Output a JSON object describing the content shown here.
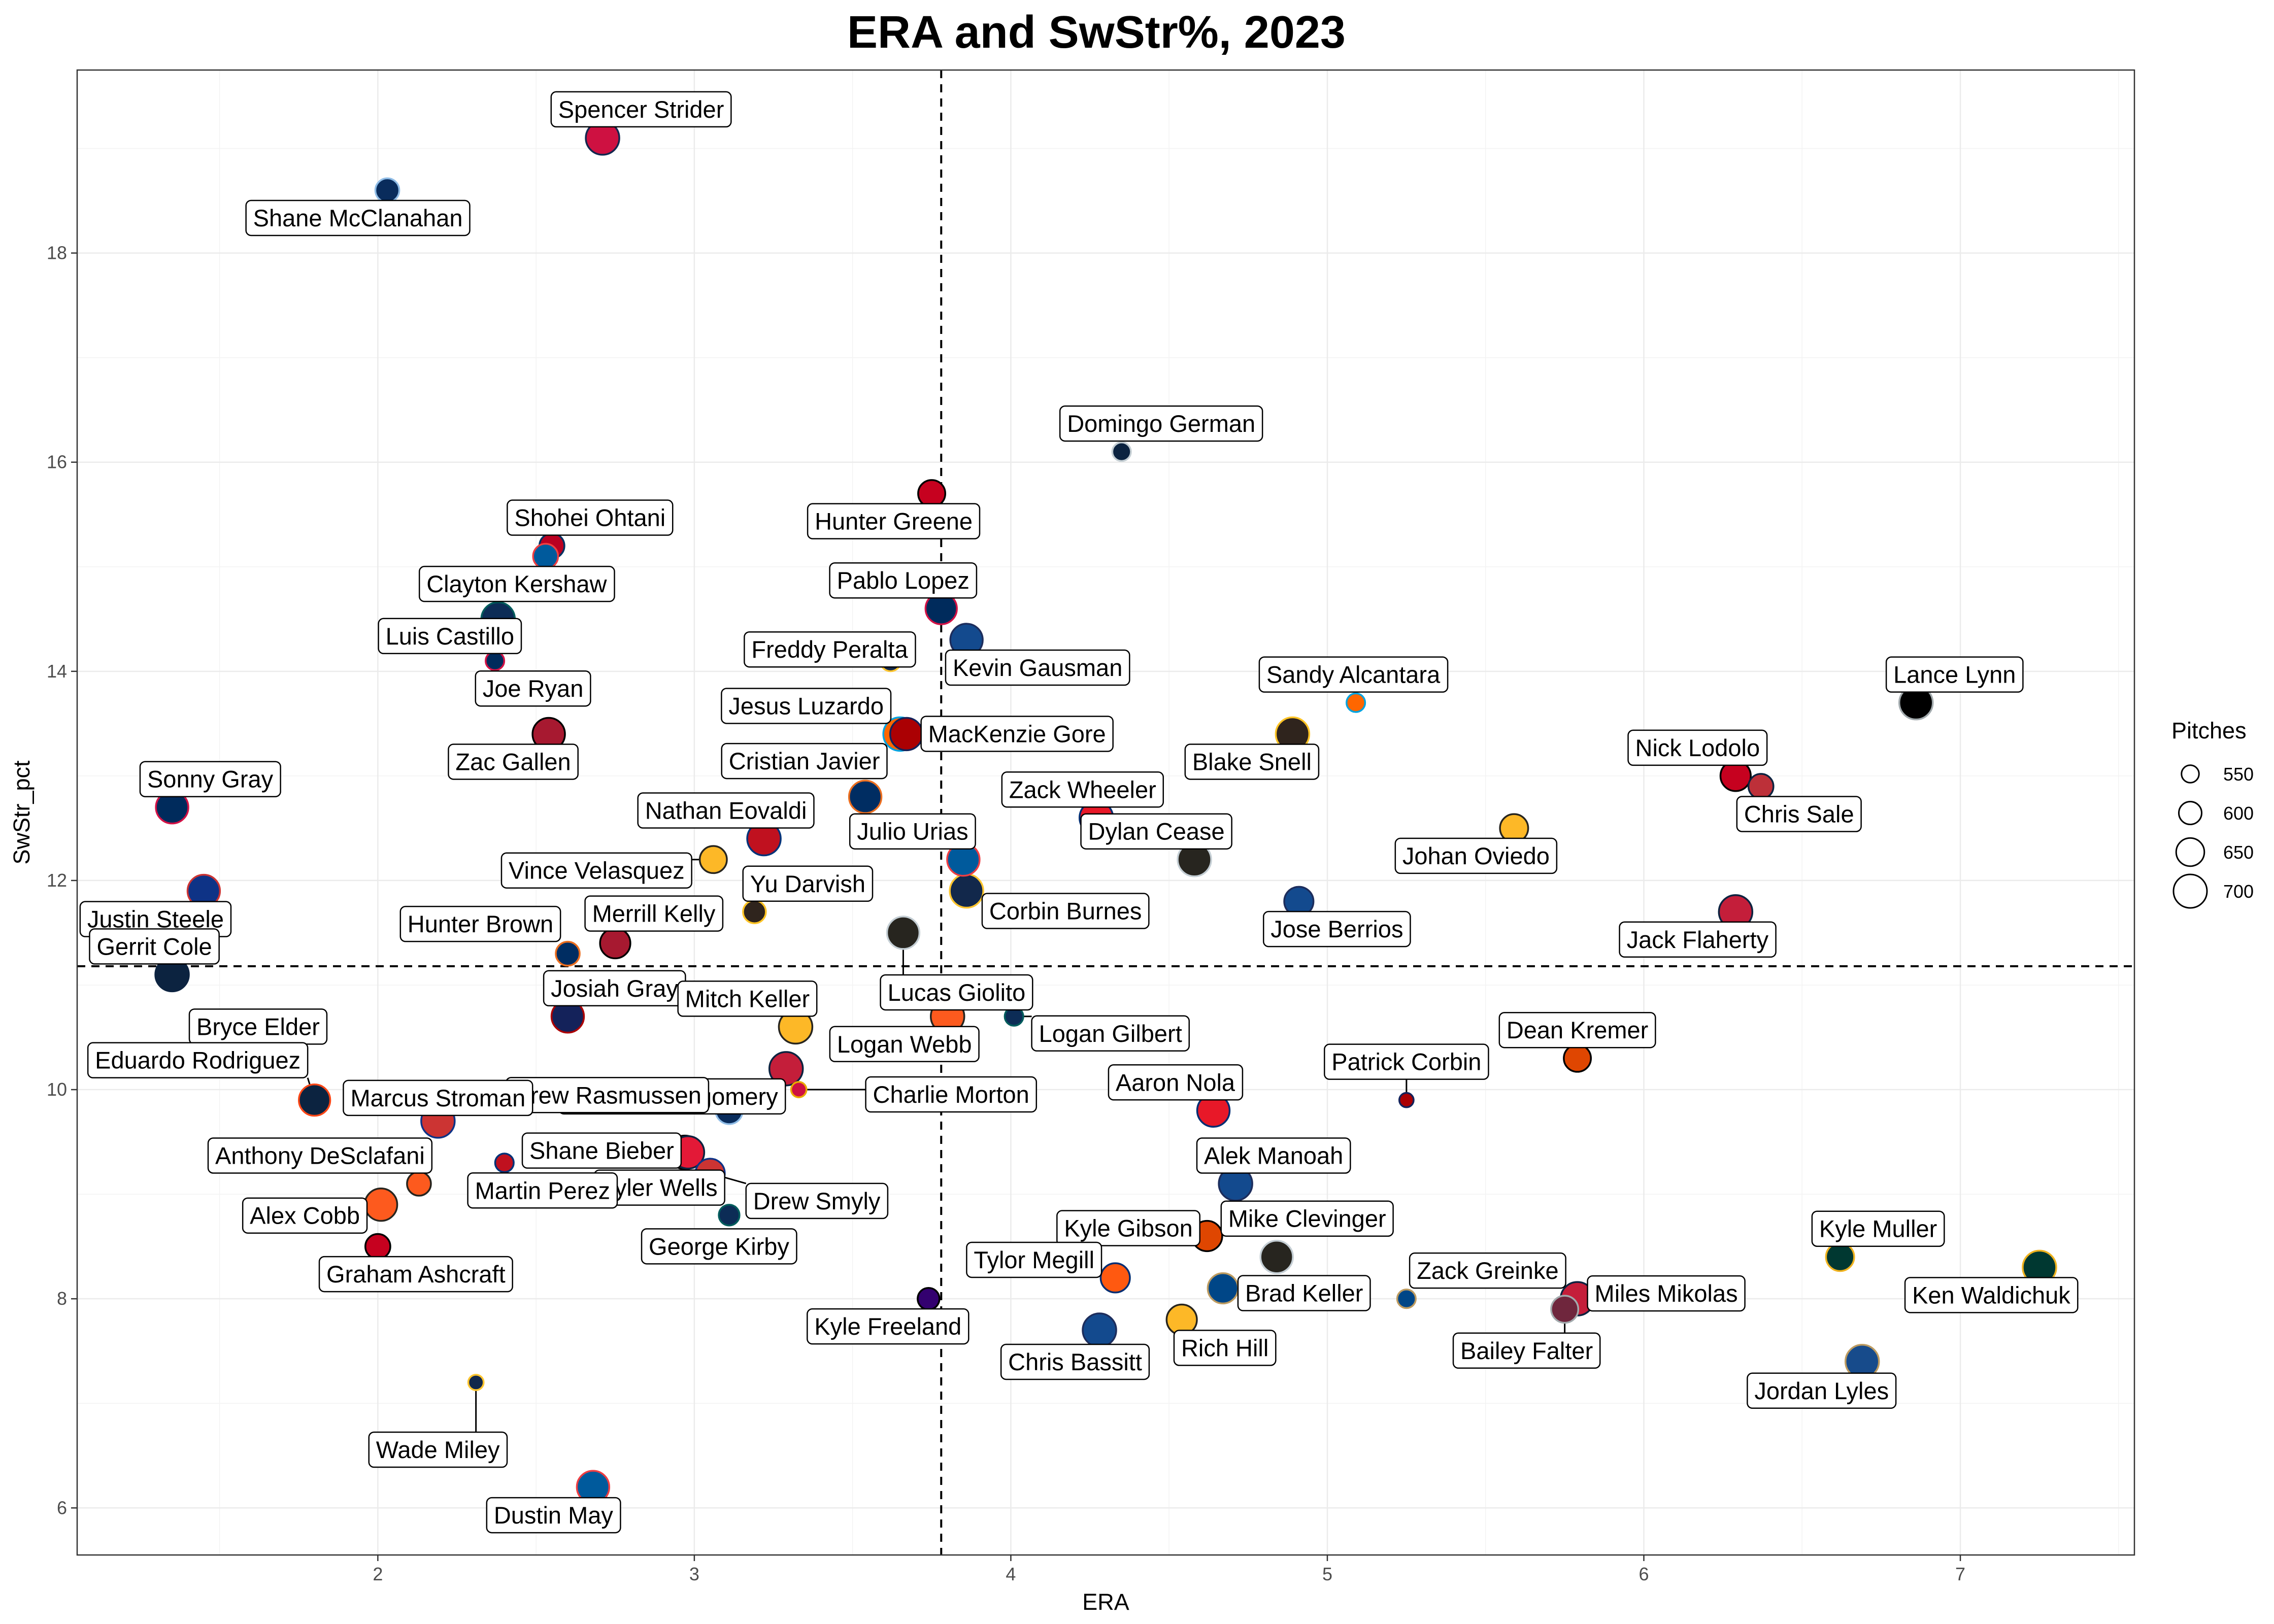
{
  "chart_data": {
    "type": "scatter",
    "title": "ERA and SwStr%, 2023",
    "xlabel": "ERA",
    "ylabel": "SwStr_pct",
    "xlim": [
      1.05,
      7.55
    ],
    "ylim": [
      5.55,
      19.75
    ],
    "x_ticks": [
      2,
      3,
      4,
      5,
      6,
      7
    ],
    "y_ticks": [
      6,
      8,
      10,
      12,
      14,
      16,
      18
    ],
    "grid": true,
    "reference_lines": {
      "x": 3.78,
      "y": 11.18
    },
    "legend": {
      "title": "Pitches",
      "placement": "right",
      "size_values": [
        550,
        600,
        650,
        700
      ]
    },
    "points": [
      {
        "name": "Spencer Strider",
        "x": 2.71,
        "y": 19.1,
        "pitches": 700,
        "fill": "#ce1141",
        "stroke": "#13274f"
      },
      {
        "name": "Shane McClanahan",
        "x": 2.03,
        "y": 18.6,
        "pitches": 610,
        "fill": "#092c5c",
        "stroke": "#8fbce6"
      },
      {
        "name": "Domingo German",
        "x": 4.35,
        "y": 16.1,
        "pitches": 560,
        "fill": "#0c2340",
        "stroke": "#c4ced3"
      },
      {
        "name": "Hunter Greene",
        "x": 3.75,
        "y": 15.7,
        "pitches": 640,
        "fill": "#c6011f",
        "stroke": "#000000"
      },
      {
        "name": "Shohei Ohtani",
        "x": 2.55,
        "y": 15.2,
        "pitches": 620,
        "fill": "#ba0021",
        "stroke": "#003263"
      },
      {
        "name": "Clayton Kershaw",
        "x": 2.53,
        "y": 15.1,
        "pitches": 620,
        "fill": "#005a9c",
        "stroke": "#ef3e42"
      },
      {
        "name": "Pablo Lopez",
        "x": 3.78,
        "y": 14.6,
        "pitches": 680,
        "fill": "#002b5c",
        "stroke": "#d31145"
      },
      {
        "name": "Luis Castillo",
        "x": 2.38,
        "y": 14.5,
        "pitches": 700,
        "fill": "#0c2c56",
        "stroke": "#005c5c"
      },
      {
        "name": "Kevin Gausman",
        "x": 3.86,
        "y": 14.3,
        "pitches": 690,
        "fill": "#134a8e",
        "stroke": "#1d2d5c"
      },
      {
        "name": "Joe Ryan",
        "x": 2.37,
        "y": 14.1,
        "pitches": 560,
        "fill": "#002b5c",
        "stroke": "#d31145"
      },
      {
        "name": "Freddy Peralta",
        "x": 3.62,
        "y": 14.1,
        "pitches": 580,
        "fill": "#12284b",
        "stroke": "#ffc52f"
      },
      {
        "name": "Sandy Alcantara",
        "x": 5.09,
        "y": 13.7,
        "pitches": 560,
        "fill": "#ff6600",
        "stroke": "#00a3e0"
      },
      {
        "name": "Lance Lynn",
        "x": 6.86,
        "y": 13.7,
        "pitches": 700,
        "fill": "#000000",
        "stroke": "#a2aaad"
      },
      {
        "name": "Zac Gallen",
        "x": 2.54,
        "y": 13.4,
        "pitches": 690,
        "fill": "#a71930",
        "stroke": "#000000"
      },
      {
        "name": "Jesus Luzardo",
        "x": 3.65,
        "y": 13.4,
        "pitches": 700,
        "fill": "#ff6600",
        "stroke": "#00a3e0"
      },
      {
        "name": "MacKenzie Gore",
        "x": 3.67,
        "y": 13.4,
        "pitches": 690,
        "fill": "#ab0003",
        "stroke": "#14225a"
      },
      {
        "name": "Blake Snell",
        "x": 4.89,
        "y": 13.4,
        "pitches": 700,
        "fill": "#2f241d",
        "stroke": "#ffc425"
      },
      {
        "name": "Nick Lodolo",
        "x": 6.29,
        "y": 13.0,
        "pitches": 670,
        "fill": "#c6011f",
        "stroke": "#000000"
      },
      {
        "name": "Chris Sale",
        "x": 6.37,
        "y": 12.9,
        "pitches": 620,
        "fill": "#bd3039",
        "stroke": "#0c2340"
      },
      {
        "name": "Cristian Javier",
        "x": 3.54,
        "y": 12.8,
        "pitches": 690,
        "fill": "#002d62",
        "stroke": "#eb6e1f"
      },
      {
        "name": "Sonny Gray",
        "x": 1.35,
        "y": 12.7,
        "pitches": 690,
        "fill": "#002b5c",
        "stroke": "#d31145"
      },
      {
        "name": "Zack Wheeler",
        "x": 4.27,
        "y": 12.6,
        "pitches": 700,
        "fill": "#e81828",
        "stroke": "#002d72"
      },
      {
        "name": "Johan Oviedo",
        "x": 5.59,
        "y": 12.5,
        "pitches": 650,
        "fill": "#fdb827",
        "stroke": "#27251f"
      },
      {
        "name": "Nathan Eovaldi",
        "x": 3.22,
        "y": 12.4,
        "pitches": 700,
        "fill": "#c0111f",
        "stroke": "#003278"
      },
      {
        "name": "Dylan Cease",
        "x": 4.58,
        "y": 12.2,
        "pitches": 700,
        "fill": "#27251f",
        "stroke": "#c4ced4"
      },
      {
        "name": "Vince Velasquez",
        "x": 3.06,
        "y": 12.2,
        "pitches": 640,
        "fill": "#fdb827",
        "stroke": "#27251f"
      },
      {
        "name": "Julio Urias",
        "x": 3.85,
        "y": 12.2,
        "pitches": 690,
        "fill": "#005a9c",
        "stroke": "#ef3e42"
      },
      {
        "name": "Justin Steele",
        "x": 1.45,
        "y": 11.9,
        "pitches": 690,
        "fill": "#0e3386",
        "stroke": "#cc3433"
      },
      {
        "name": "Corbin Burnes",
        "x": 3.86,
        "y": 11.9,
        "pitches": 700,
        "fill": "#12284b",
        "stroke": "#ffc52f"
      },
      {
        "name": "Jose Berrios",
        "x": 4.91,
        "y": 11.8,
        "pitches": 660,
        "fill": "#134a8e",
        "stroke": "#1d2d5c"
      },
      {
        "name": "Jack Flaherty",
        "x": 6.29,
        "y": 11.7,
        "pitches": 700,
        "fill": "#c41e3a",
        "stroke": "#0c2340"
      },
      {
        "name": "Yu Darvish",
        "x": 3.19,
        "y": 11.7,
        "pitches": 600,
        "fill": "#2f241d",
        "stroke": "#ffc425"
      },
      {
        "name": "Lucas Giolito",
        "x": 3.66,
        "y": 11.5,
        "pitches": 690,
        "fill": "#27251f",
        "stroke": "#c4ced4"
      },
      {
        "name": "Merrill Kelly",
        "x": 2.75,
        "y": 11.4,
        "pitches": 670,
        "fill": "#a71930",
        "stroke": "#000000"
      },
      {
        "name": "Hunter Brown",
        "x": 2.6,
        "y": 11.3,
        "pitches": 610,
        "fill": "#002d62",
        "stroke": "#eb6e1f"
      },
      {
        "name": "Gerrit Cole",
        "x": 1.35,
        "y": 11.1,
        "pitches": 700,
        "fill": "#0c2340",
        "stroke": "#0c2340"
      },
      {
        "name": "Logan Gilbert",
        "x": 4.01,
        "y": 10.7,
        "pitches": 560,
        "fill": "#0c2c56",
        "stroke": "#005c5c"
      },
      {
        "name": "Josiah Gray",
        "x": 2.6,
        "y": 10.7,
        "pitches": 690,
        "fill": "#14225a",
        "stroke": "#ab0003"
      },
      {
        "name": "Logan Webb",
        "x": 3.8,
        "y": 10.7,
        "pitches": 700,
        "fill": "#fd5a1e",
        "stroke": "#27251f"
      },
      {
        "name": "Bryce Elder",
        "x": 1.75,
        "y": 10.6,
        "pitches": 640,
        "fill": "#ce1141",
        "stroke": "#13274f"
      },
      {
        "name": "Mitch Keller",
        "x": 3.32,
        "y": 10.6,
        "pitches": 700,
        "fill": "#fdb827",
        "stroke": "#27251f"
      },
      {
        "name": "Jordan Montgomery",
        "x": 3.29,
        "y": 10.2,
        "pitches": 700,
        "fill": "#c41e3a",
        "stroke": "#0c2340"
      },
      {
        "name": "Dean Kremer",
        "x": 5.79,
        "y": 10.3,
        "pitches": 640,
        "fill": "#df4601",
        "stroke": "#000000"
      },
      {
        "name": "Eduardo Rodriguez",
        "x": 1.8,
        "y": 9.9,
        "pitches": 680,
        "fill": "#0c2340",
        "stroke": "#fa4616"
      },
      {
        "name": "Charlie Morton",
        "x": 3.33,
        "y": 10.0,
        "pitches": 530,
        "fill": "#ce1141",
        "stroke": "#eaaa00"
      },
      {
        "name": "Drew Rasmussen",
        "x": 3.11,
        "y": 9.8,
        "pitches": 640,
        "fill": "#092c5c",
        "stroke": "#8fbce6"
      },
      {
        "name": "Aaron Nola",
        "x": 4.64,
        "y": 9.8,
        "pitches": 690,
        "fill": "#e81828",
        "stroke": "#002d72"
      },
      {
        "name": "Marcus Stroman",
        "x": 2.19,
        "y": 9.7,
        "pitches": 700,
        "fill": "#cc3433",
        "stroke": "#0e3386"
      },
      {
        "name": "Tyler Wells",
        "x": 2.97,
        "y": 9.4,
        "pitches": 700,
        "fill": "#df4601",
        "stroke": "#000000"
      },
      {
        "name": "Shane Bieber",
        "x": 2.98,
        "y": 9.4,
        "pitches": 690,
        "fill": "#e31937",
        "stroke": "#0c2340"
      },
      {
        "name": "Martin Perez",
        "x": 2.4,
        "y": 9.3,
        "pitches": 560,
        "fill": "#c0111f",
        "stroke": "#003278"
      },
      {
        "name": "Drew Smyly",
        "x": 3.05,
        "y": 9.2,
        "pitches": 660,
        "fill": "#cc3433",
        "stroke": "#0e3386"
      },
      {
        "name": "Anthony DeSclafani",
        "x": 2.13,
        "y": 9.1,
        "pitches": 610,
        "fill": "#fd5a1e",
        "stroke": "#27251f"
      },
      {
        "name": "Alek Manoah",
        "x": 4.71,
        "y": 9.1,
        "pitches": 700,
        "fill": "#134a8e",
        "stroke": "#1d2d5c"
      },
      {
        "name": "Alex Cobb",
        "x": 2.01,
        "y": 8.9,
        "pitches": 690,
        "fill": "#fd5a1e",
        "stroke": "#27251f"
      },
      {
        "name": "George Kirby",
        "x": 3.11,
        "y": 8.8,
        "pitches": 580,
        "fill": "#0c2c56",
        "stroke": "#005c5c"
      },
      {
        "name": "Kyle Gibson",
        "x": 4.62,
        "y": 8.6,
        "pitches": 670,
        "fill": "#df4601",
        "stroke": "#000000"
      },
      {
        "name": "Graham Ashcraft",
        "x": 2.0,
        "y": 8.5,
        "pitches": 620,
        "fill": "#c6011f",
        "stroke": "#000000"
      },
      {
        "name": "Mike Clevinger",
        "x": 4.84,
        "y": 8.4,
        "pitches": 690,
        "fill": "#27251f",
        "stroke": "#c4ced4"
      },
      {
        "name": "Kyle Muller",
        "x": 6.62,
        "y": 8.4,
        "pitches": 650,
        "fill": "#003831",
        "stroke": "#efb21e"
      },
      {
        "name": "Ken Waldichuk",
        "x": 7.25,
        "y": 8.3,
        "pitches": 700,
        "fill": "#003831",
        "stroke": "#efb21e"
      },
      {
        "name": "Tylor Megill",
        "x": 4.33,
        "y": 8.2,
        "pitches": 660,
        "fill": "#ff5910",
        "stroke": "#002d72"
      },
      {
        "name": "Brad Keller",
        "x": 4.67,
        "y": 8.1,
        "pitches": 670,
        "fill": "#004687",
        "stroke": "#bd9b60"
      },
      {
        "name": "Kyle Freeland",
        "x": 3.74,
        "y": 8.0,
        "pitches": 590,
        "fill": "#33006f",
        "stroke": "#000000"
      },
      {
        "name": "Zack Greinke",
        "x": 5.25,
        "y": 8.0,
        "pitches": 560,
        "fill": "#004687",
        "stroke": "#bd9b60"
      },
      {
        "name": "Miles Mikolas",
        "x": 5.79,
        "y": 8.0,
        "pitches": 700,
        "fill": "#c41e3a",
        "stroke": "#0c2340"
      },
      {
        "name": "Bailey Falter",
        "x": 5.75,
        "y": 7.9,
        "pitches": 640,
        "fill": "#6f263d",
        "stroke": "#a2aaad"
      },
      {
        "name": "Rich Hill",
        "x": 4.54,
        "y": 7.8,
        "pitches": 670,
        "fill": "#fdb827",
        "stroke": "#27251f"
      },
      {
        "name": "Chris Bassitt",
        "x": 4.28,
        "y": 7.7,
        "pitches": 700,
        "fill": "#134a8e",
        "stroke": "#1d2d5c"
      },
      {
        "name": "Jordan Lyles",
        "x": 6.69,
        "y": 7.4,
        "pitches": 700,
        "fill": "#174b8b",
        "stroke": "#bd9b60"
      },
      {
        "name": "Wade Miley",
        "x": 2.31,
        "y": 7.2,
        "pitches": 530,
        "fill": "#12284b",
        "stroke": "#ffc52f"
      },
      {
        "name": "Dustin May",
        "x": 2.68,
        "y": 6.2,
        "pitches": 690,
        "fill": "#005a9c",
        "stroke": "#ef3e42"
      },
      {
        "name": "Patrick Corbin",
        "x": 5.25,
        "y": 9.9,
        "pitches": 520,
        "fill": "#ab0003",
        "stroke": "#14225a"
      }
    ]
  }
}
